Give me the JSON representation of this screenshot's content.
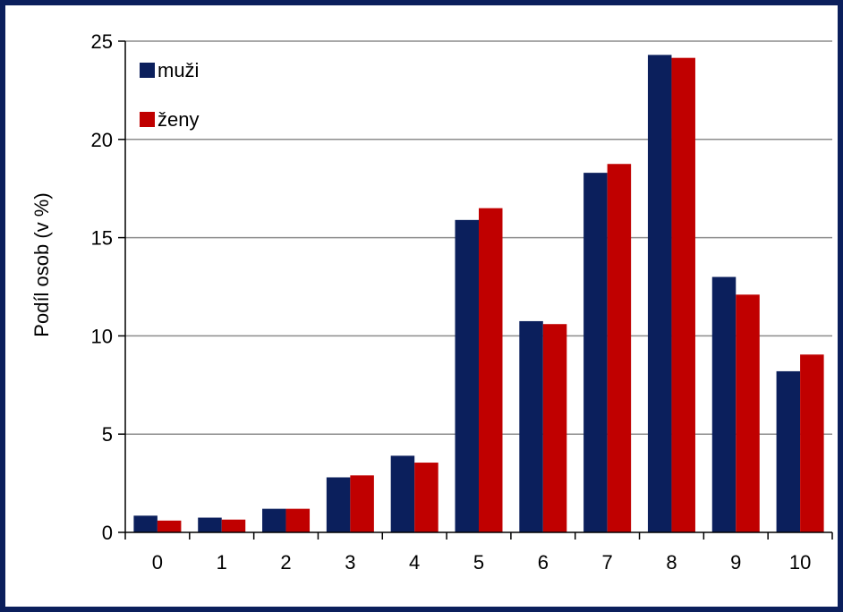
{
  "chart_data": {
    "type": "bar",
    "title": "",
    "xlabel": "",
    "ylabel": "Podíl osob (v %)",
    "categories": [
      "0",
      "1",
      "2",
      "3",
      "4",
      "5",
      "6",
      "7",
      "8",
      "9",
      "10"
    ],
    "series": [
      {
        "name": "muži",
        "color": "#0b1f5c",
        "values": [
          0.85,
          0.75,
          1.2,
          2.8,
          3.9,
          15.9,
          10.75,
          18.3,
          24.3,
          13.0,
          8.2
        ]
      },
      {
        "name": "ženy",
        "color": "#c00000",
        "values": [
          0.6,
          0.65,
          1.2,
          2.9,
          3.55,
          16.5,
          10.6,
          18.75,
          24.15,
          12.1,
          9.05
        ]
      }
    ],
    "ylim": [
      0,
      25
    ],
    "yticks": [
      "0",
      "5",
      "10",
      "15",
      "20",
      "25"
    ],
    "grid": true,
    "legend": "top-left",
    "frame_color": "#0b1f5c"
  }
}
